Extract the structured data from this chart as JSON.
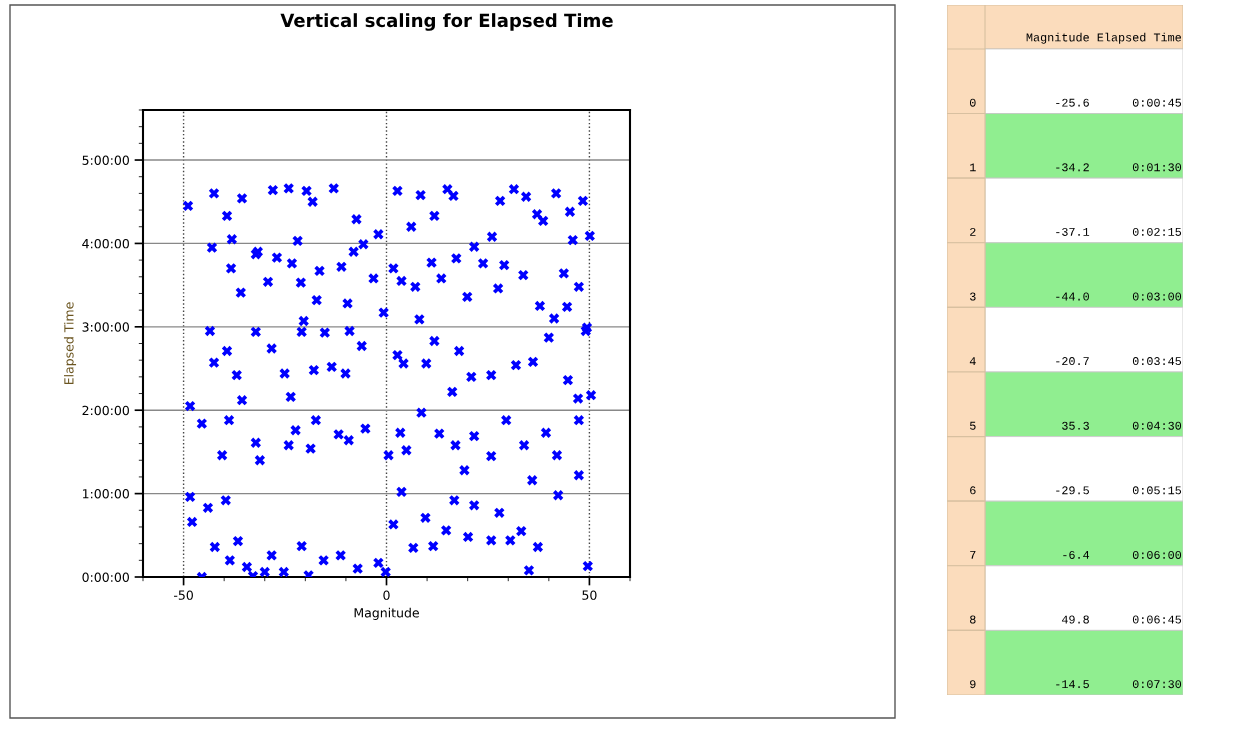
{
  "chart_data": [
    {
      "type": "scatter",
      "title": "Vertical scaling for Elapsed Time",
      "xlabel": "Magnitude",
      "ylabel": "Elapsed Time",
      "xlim": [
        -60,
        60
      ],
      "xticks": [
        -50,
        0,
        50
      ],
      "ylim": [
        0,
        5.6
      ],
      "yticks": [
        {
          "value": 0,
          "label": "0:00:00"
        },
        {
          "value": 1,
          "label": "1:00:00"
        },
        {
          "value": 2,
          "label": "2:00:00"
        },
        {
          "value": 3,
          "label": "3:00:00"
        },
        {
          "value": 4,
          "label": "4:00:00"
        },
        {
          "value": 5,
          "label": "5:00:00"
        }
      ],
      "grid": true,
      "marker": "cross",
      "series": [
        {
          "color": "#0000ff",
          "x": [
            -48.9,
            -42.5,
            -39.3,
            -35.6,
            -38.1,
            -32.2,
            -28.0,
            -24.1,
            -21.9,
            -19.7,
            -18.2,
            -13.0,
            -7.4,
            -5.7,
            -2.0,
            2.7,
            6.1,
            8.4,
            11.8,
            15.0,
            16.5,
            21.6,
            26.0,
            28.0,
            31.4,
            34.4,
            37.1,
            41.8,
            45.2,
            48.4,
            50.1,
            45.9,
            38.6,
            -43.0,
            -38.3,
            -35.9,
            -31.7,
            -29.2,
            -27.0,
            -23.3,
            -21.1,
            -20.4,
            -17.2,
            -16.5,
            -11.1,
            -9.6,
            -8.1,
            -9.1,
            -3.2,
            -0.7,
            1.7,
            3.7,
            7.1,
            8.1,
            11.1,
            13.5,
            17.2,
            19.9,
            23.8,
            27.5,
            29.0,
            33.7,
            37.8,
            41.3,
            44.5,
            49.4,
            47.4,
            43.7,
            -48.4,
            -43.5,
            -42.5,
            -39.3,
            -36.9,
            -35.6,
            -32.2,
            -28.3,
            -25.1,
            -23.6,
            -20.9,
            -17.9,
            -15.2,
            -13.5,
            -10.1,
            -6.1,
            2.7,
            4.2,
            9.8,
            11.8,
            16.2,
            17.9,
            20.9,
            25.8,
            31.9,
            36.1,
            40.0,
            44.7,
            47.2,
            50.4,
            49.1,
            -45.5,
            -40.5,
            -38.8,
            -32.2,
            -31.2,
            -24.1,
            -22.4,
            -18.7,
            -17.4,
            -11.8,
            -9.3,
            -5.2,
            0.5,
            3.4,
            4.9,
            8.6,
            13.0,
            17.0,
            19.2,
            21.6,
            25.8,
            29.5,
            33.9,
            35.9,
            39.3,
            42.0,
            47.4,
            47.4,
            -48.4,
            -47.9,
            -44.0,
            -42.3,
            -39.6,
            -38.6,
            -36.6,
            -34.4,
            -30.0,
            -28.3,
            -25.3,
            -20.9,
            -19.2,
            -15.5,
            -11.3,
            -7.1,
            -2.0,
            1.7,
            3.7,
            6.6,
            9.6,
            11.5,
            14.7,
            16.7,
            20.1,
            21.6,
            25.8,
            27.8,
            30.5,
            33.2,
            35.1,
            37.3,
            42.3,
            49.6,
            -45.5,
            -32.9,
            -0.2
          ],
          "values": [
            4.45,
            4.6,
            4.33,
            4.54,
            4.05,
            3.87,
            4.64,
            4.66,
            4.03,
            4.63,
            4.5,
            4.66,
            4.29,
            3.99,
            4.11,
            4.63,
            4.2,
            4.58,
            4.33,
            4.65,
            4.57,
            3.96,
            4.08,
            4.51,
            4.65,
            4.56,
            4.35,
            4.6,
            4.38,
            4.51,
            4.09,
            4.04,
            4.27,
            3.95,
            3.7,
            3.41,
            3.9,
            3.54,
            3.83,
            3.76,
            3.53,
            3.07,
            3.32,
            3.67,
            3.72,
            3.28,
            3.9,
            2.95,
            3.58,
            3.17,
            3.7,
            3.55,
            3.48,
            3.09,
            3.77,
            3.58,
            3.82,
            3.36,
            3.76,
            3.46,
            3.74,
            3.62,
            3.25,
            3.1,
            3.24,
            2.99,
            3.48,
            3.64,
            2.05,
            2.95,
            2.57,
            2.71,
            2.42,
            2.12,
            2.94,
            2.74,
            2.44,
            2.16,
            2.94,
            2.48,
            2.93,
            2.52,
            2.44,
            2.77,
            2.66,
            2.56,
            2.56,
            2.83,
            2.22,
            2.71,
            2.4,
            2.42,
            2.54,
            2.58,
            2.87,
            2.36,
            2.14,
            2.18,
            2.95,
            1.84,
            1.46,
            1.88,
            1.61,
            1.4,
            1.58,
            1.76,
            1.54,
            1.88,
            1.71,
            1.64,
            1.78,
            1.46,
            1.73,
            1.52,
            1.97,
            1.72,
            1.58,
            1.28,
            1.69,
            1.45,
            1.88,
            1.58,
            1.16,
            1.73,
            1.46,
            1.88,
            1.22,
            0.96,
            0.66,
            0.83,
            0.36,
            0.92,
            0.2,
            0.43,
            0.12,
            0.06,
            0.26,
            0.06,
            0.37,
            0.02,
            0.2,
            0.26,
            0.1,
            0.17,
            0.63,
            1.02,
            0.35,
            0.71,
            0.37,
            0.56,
            0.92,
            0.48,
            0.86,
            0.44,
            0.77,
            0.44,
            0.55,
            0.08,
            0.36,
            0.98,
            0.13,
            0.0,
            0.01,
            0.06
          ]
        }
      ]
    },
    {
      "type": "other",
      "annotations": [
        "Magnitude",
        "Elapsed Time",
        "0 -25.6 0:00:45",
        "1 -34.2 0:01:30",
        "2 -37.1 0:02:15",
        "3 -44.0 0:03:00",
        "4 -20.7 0:03:45",
        "5 35.3 0:04:30",
        "6 -29.5 0:05:15",
        "7 -6.4 0:06:00",
        "8 49.8 0:06:45",
        "9 -14.5 0:07:30"
      ]
    }
  ]
}
